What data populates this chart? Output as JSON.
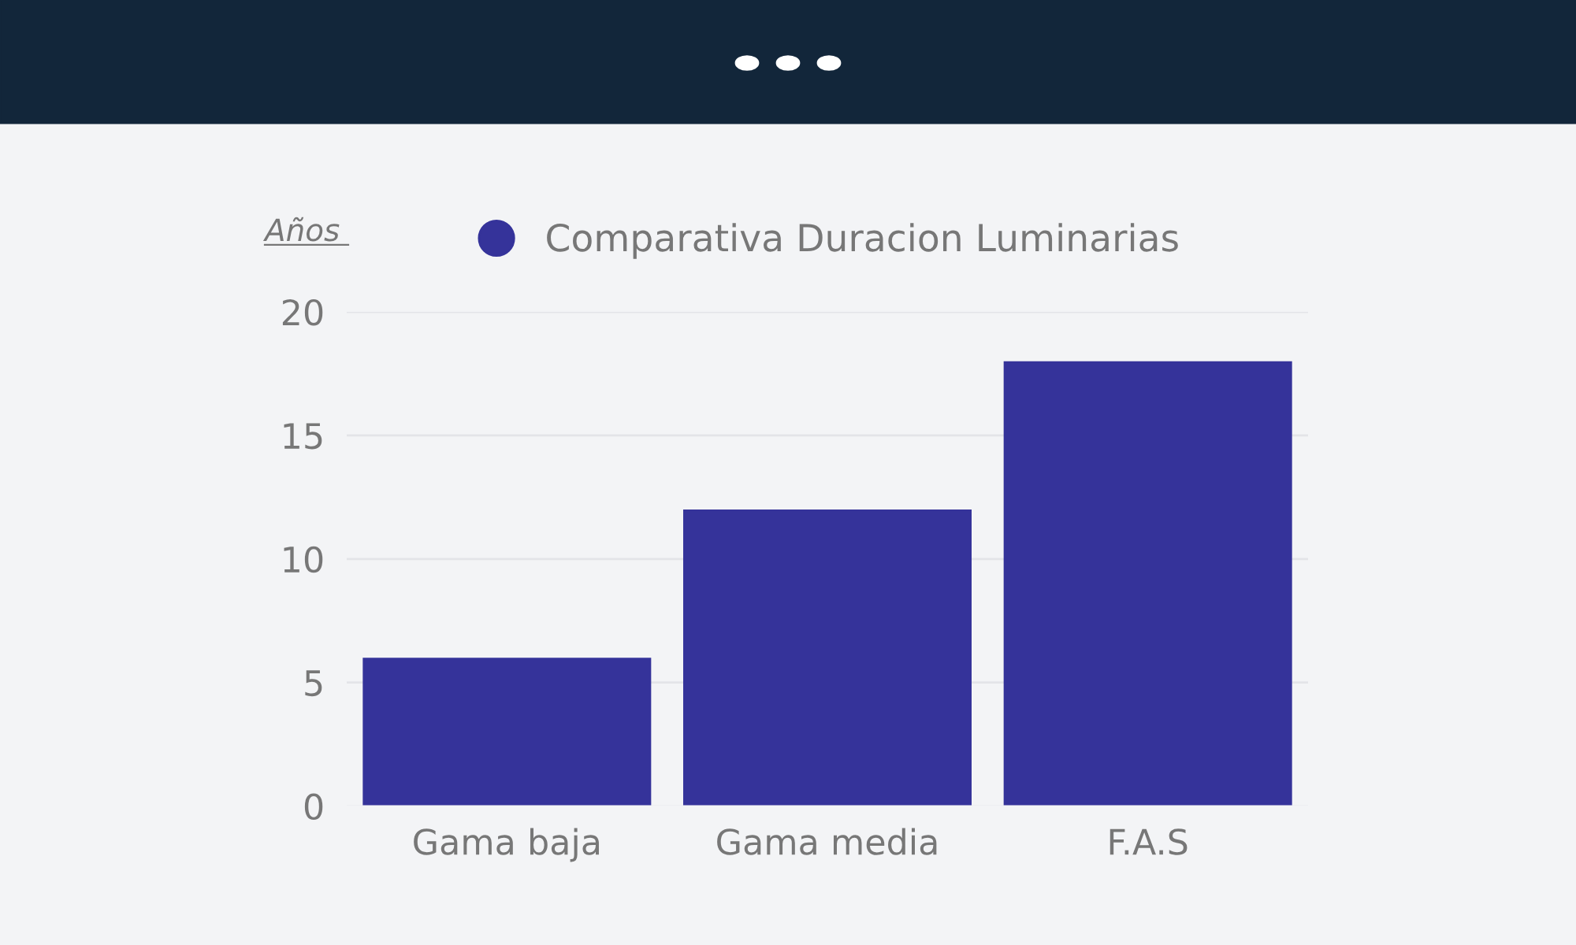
{
  "chart_data": {
    "type": "bar",
    "ylabel": "Años",
    "categories": [
      "Gama baja",
      "Gama media",
      "F.A.S"
    ],
    "series": [
      {
        "name": "Comparativa Duracion Luminarias",
        "color": "#35339a",
        "values": [
          6,
          12,
          18
        ]
      }
    ],
    "ylim": [
      0,
      20
    ],
    "yticks": [
      0,
      5,
      10,
      15,
      20
    ],
    "grid": "y",
    "legend": "top"
  }
}
